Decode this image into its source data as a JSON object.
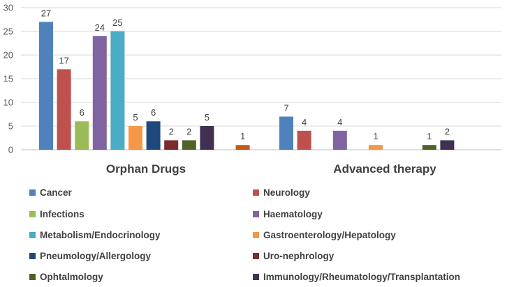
{
  "chart_data": {
    "type": "bar",
    "categories": [
      "Orphan Drugs",
      "Advanced therapy"
    ],
    "ylim": [
      0,
      30
    ],
    "yticks": [
      0,
      5,
      10,
      15,
      20,
      25,
      30
    ],
    "gridlines": true,
    "legend_position": "bottom",
    "series": [
      {
        "name": "Cancer",
        "color": "#4F81BD",
        "values": [
          27,
          7
        ]
      },
      {
        "name": "Neurology",
        "color": "#C0504D",
        "values": [
          17,
          4
        ]
      },
      {
        "name": "Infections",
        "color": "#9BBB59",
        "values": [
          6,
          null
        ]
      },
      {
        "name": "Haematology",
        "color": "#8064A2",
        "values": [
          24,
          4
        ]
      },
      {
        "name": "Metabolism/Endocrinology",
        "color": "#4BACC6",
        "values": [
          25,
          null
        ]
      },
      {
        "name": "Gastroenterology/Hepatology",
        "color": "#F79646",
        "values": [
          5,
          1
        ]
      },
      {
        "name": "Pneumology/Allergology",
        "color": "#1F497D",
        "values": [
          6,
          null
        ]
      },
      {
        "name": "Uro-nephrology",
        "color": "#7B2C2C",
        "values": [
          2,
          null
        ]
      },
      {
        "name": "Ophtalmology",
        "color": "#4F6228",
        "values": [
          2,
          1
        ]
      },
      {
        "name": "Immunology/Rheumatology/Transplantation",
        "color": "#403152",
        "values": [
          5,
          2
        ]
      },
      {
        "name": "",
        "color": "#C55A11",
        "values": [
          1,
          null
        ],
        "in_legend": false
      }
    ]
  }
}
